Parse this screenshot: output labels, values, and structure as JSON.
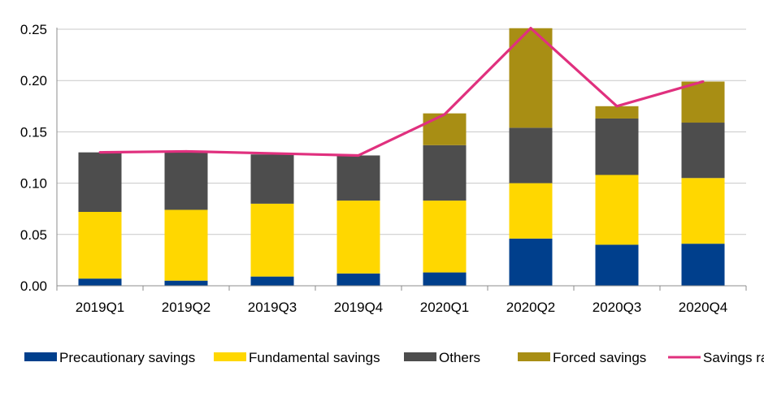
{
  "chart_data": {
    "type": "bar",
    "stacked": true,
    "categories": [
      "2019Q1",
      "2019Q2",
      "2019Q3",
      "2019Q4",
      "2020Q1",
      "2020Q2",
      "2020Q3",
      "2020Q4"
    ],
    "series": [
      {
        "name": "Precautionary  savings",
        "type": "bar",
        "color": "#003f8c",
        "values": [
          0.007,
          0.005,
          0.009,
          0.012,
          0.013,
          0.046,
          0.04,
          0.041
        ]
      },
      {
        "name": "Fundamental savings",
        "type": "bar",
        "color": "#ffd700",
        "values": [
          0.065,
          0.069,
          0.071,
          0.071,
          0.07,
          0.054,
          0.068,
          0.064
        ]
      },
      {
        "name": "Others",
        "type": "bar",
        "color": "#4d4d4d",
        "values": [
          0.058,
          0.056,
          0.048,
          0.044,
          0.054,
          0.054,
          0.055,
          0.054
        ]
      },
      {
        "name": "Forced savings",
        "type": "bar",
        "color": "#a88e14",
        "values": [
          0.0,
          0.0,
          0.0,
          0.0,
          0.031,
          0.097,
          0.012,
          0.04
        ]
      },
      {
        "name": "Savings rates",
        "type": "line",
        "color": "#e0307e",
        "values": [
          0.13,
          0.131,
          0.129,
          0.127,
          0.167,
          0.251,
          0.175,
          0.199
        ]
      }
    ],
    "y_ticks": [
      "0.00",
      "0.05",
      "0.10",
      "0.15",
      "0.20",
      "0.25"
    ],
    "ylim": [
      0,
      0.25
    ],
    "grid": true,
    "legend_position": "bottom",
    "title": "",
    "xlabel": "",
    "ylabel": ""
  }
}
